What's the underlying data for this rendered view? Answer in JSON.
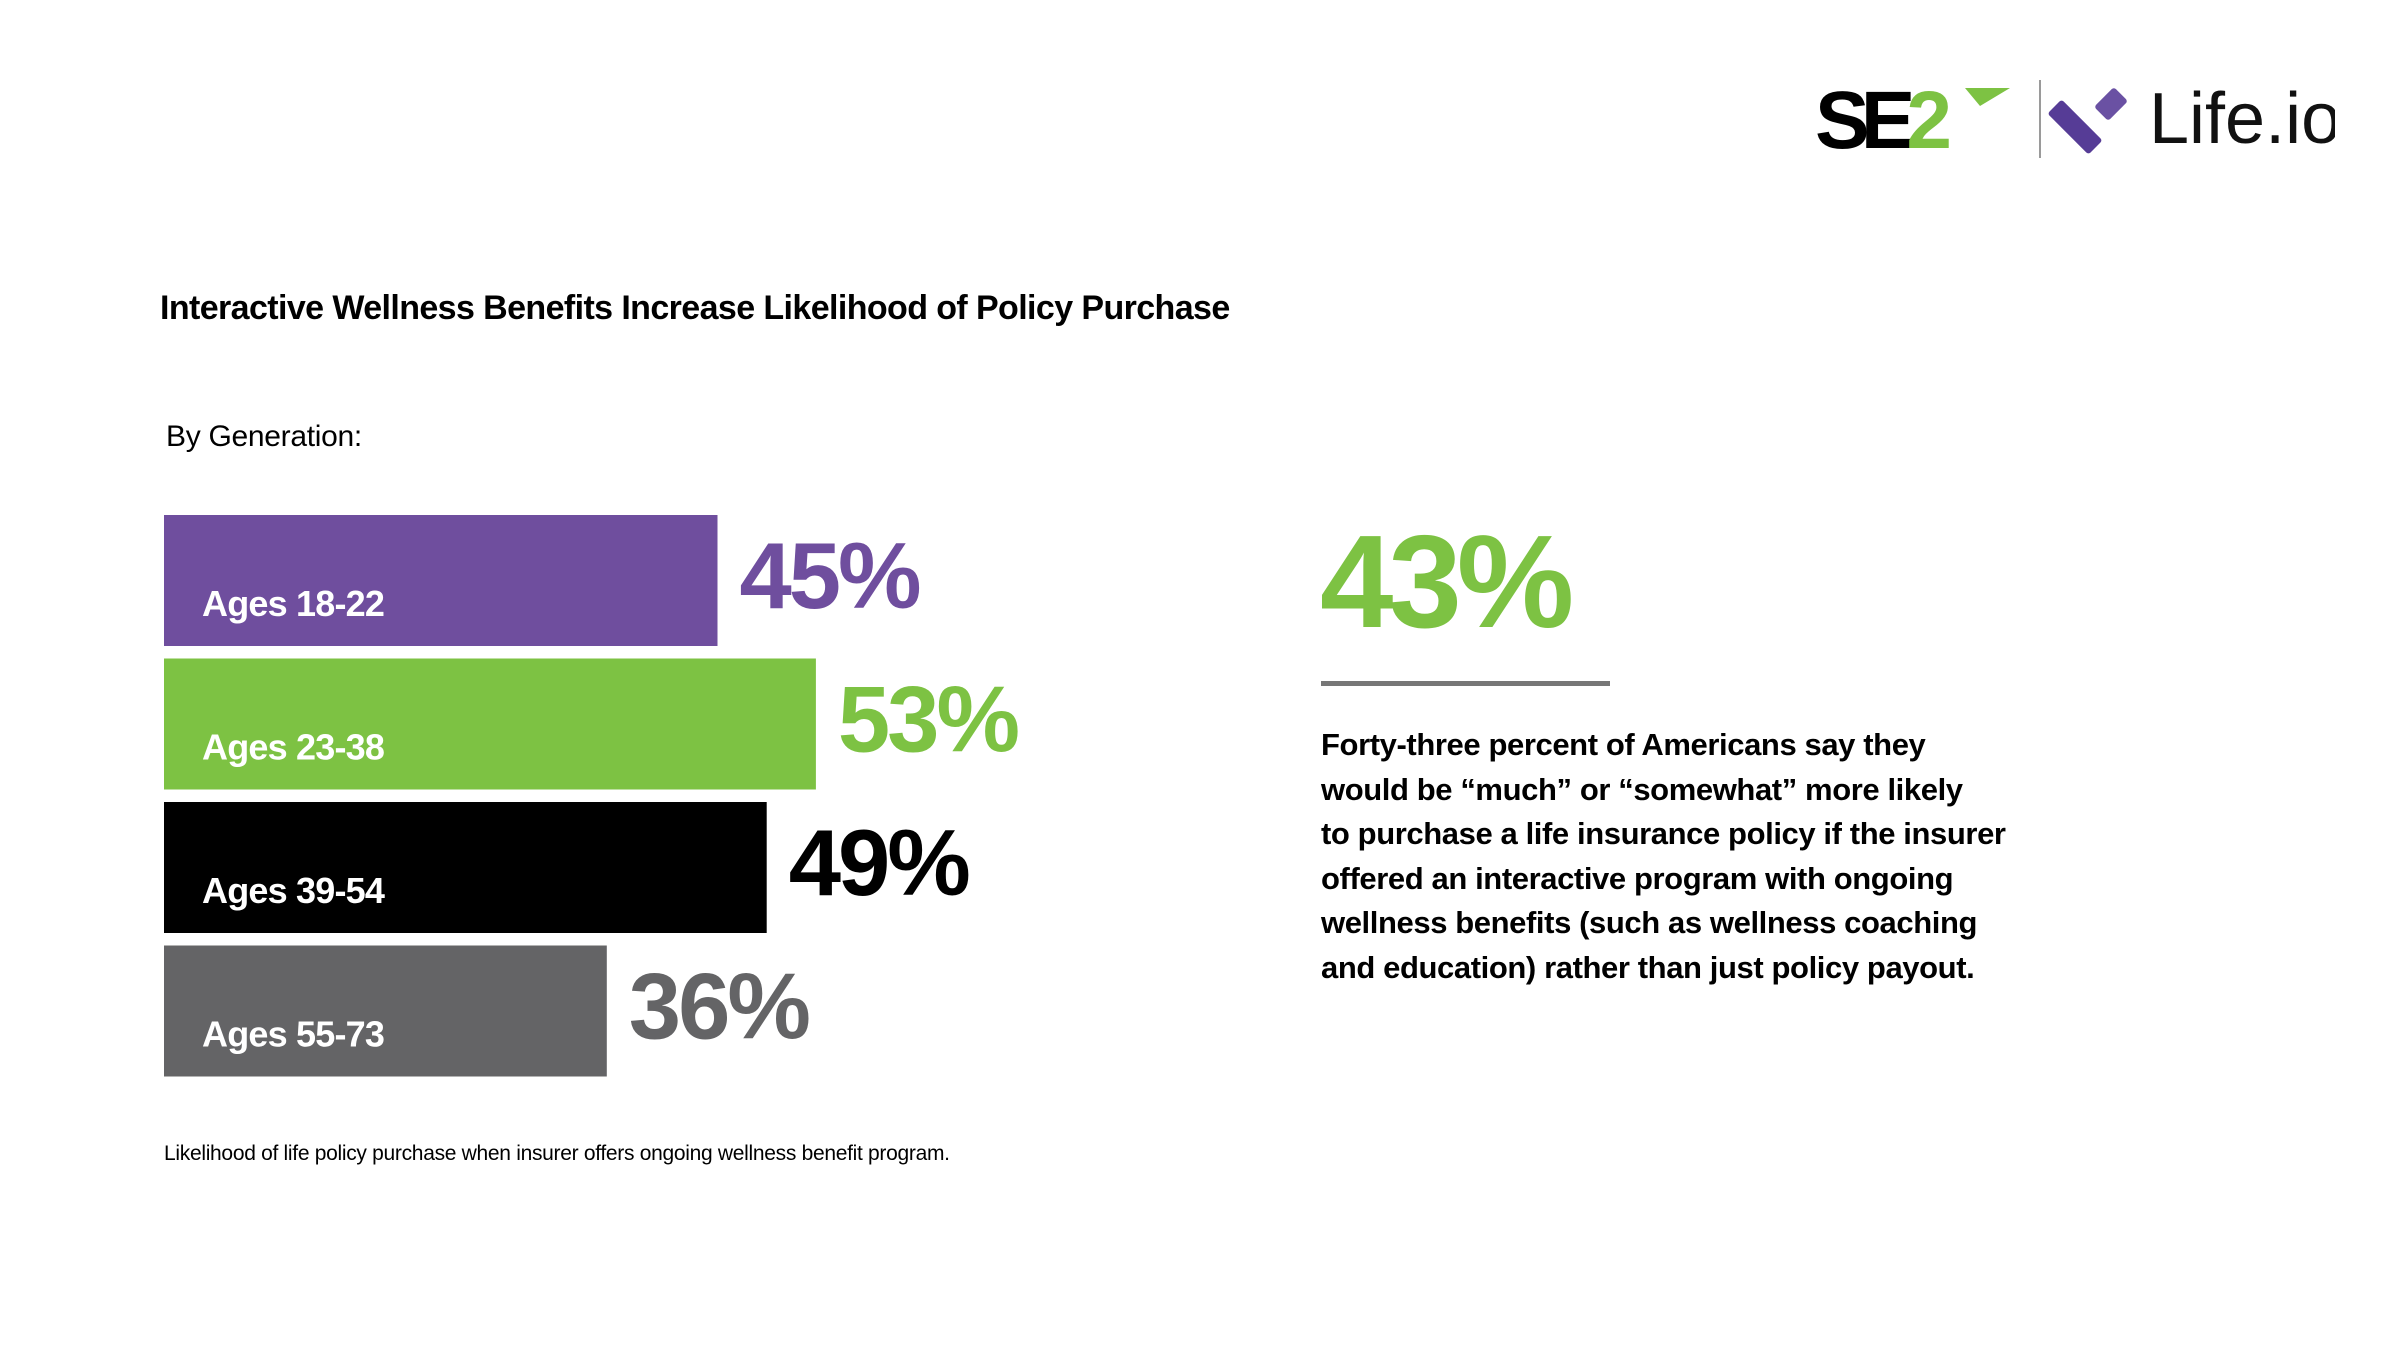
{
  "logo": {
    "brand1_text": "SE2",
    "brand2_text": "Life.io",
    "brand1_colors": {
      "black": "#000000",
      "green": "#7DC243"
    },
    "brand2_colors": {
      "purple_dark": "#563C96",
      "purple_light": "#6A51A3"
    }
  },
  "chart_data": {
    "type": "bar",
    "orientation": "horizontal",
    "title": "Interactive Wellness Benefits Increase Likelihood of Policy Purchase",
    "subtitle": "By Generation:",
    "categories": [
      "Ages 18-22",
      "Ages 23-38",
      "Ages 39-54",
      "Ages 55-73"
    ],
    "values": [
      45,
      53,
      49,
      36
    ],
    "value_labels": [
      "45%",
      "53%",
      "49%",
      "36%"
    ],
    "colors": [
      "#6F4E9E",
      "#7DC243",
      "#000000",
      "#646466"
    ],
    "xlim": [
      0,
      100
    ],
    "unit": "%",
    "grid": false,
    "legend": "none",
    "footnote": "Likelihood of life policy purchase when insurer offers ongoing wellness benefit program."
  },
  "callout": {
    "stat": "43%",
    "stat_color": "#7DC243",
    "rule_color": "#777777",
    "lines": [
      "Forty-three percent of Americans say they",
      "would be “much” or “somewhat” more likely",
      "to purchase a life insurance policy if the insurer",
      "offered an interactive program with ongoing",
      "wellness benefits (such as wellness coaching",
      "and education) rather than just policy payout."
    ]
  }
}
